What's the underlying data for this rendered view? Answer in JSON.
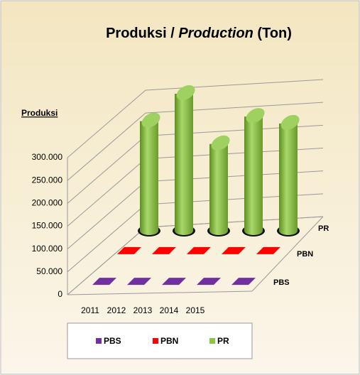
{
  "chart_data": {
    "type": "bar3d",
    "title": "Produksi / Production (Ton)",
    "title_parts": [
      "Produksi / ",
      "Production",
      " (Ton)"
    ],
    "y_label": "Produksi",
    "categories": [
      "2011",
      "2012",
      "2013",
      "2014",
      "2015"
    ],
    "series": [
      {
        "name": "PBS",
        "color": "#7030a0",
        "values": [
          6000,
          6000,
          6000,
          6000,
          6000
        ]
      },
      {
        "name": "PBN",
        "color": "#ff0000",
        "values": [
          8000,
          8000,
          8000,
          8000,
          8000
        ]
      },
      {
        "name": "PR",
        "color": "#8dc63f",
        "values": [
          240000,
          300000,
          190000,
          250000,
          235000
        ]
      }
    ],
    "ylim": [
      0,
      300000
    ],
    "yticks": [
      0,
      {
        "value": 50000,
        "label": "50.000"
      },
      {
        "value": 100000,
        "label": "100.000"
      },
      {
        "value": 150000,
        "label": "150.000"
      },
      {
        "value": 200000,
        "label": "200.000"
      },
      {
        "value": 250000,
        "label": "250.000"
      },
      {
        "value": 300000,
        "label": "300.000"
      }
    ],
    "grid": true,
    "legend": "bottom"
  }
}
